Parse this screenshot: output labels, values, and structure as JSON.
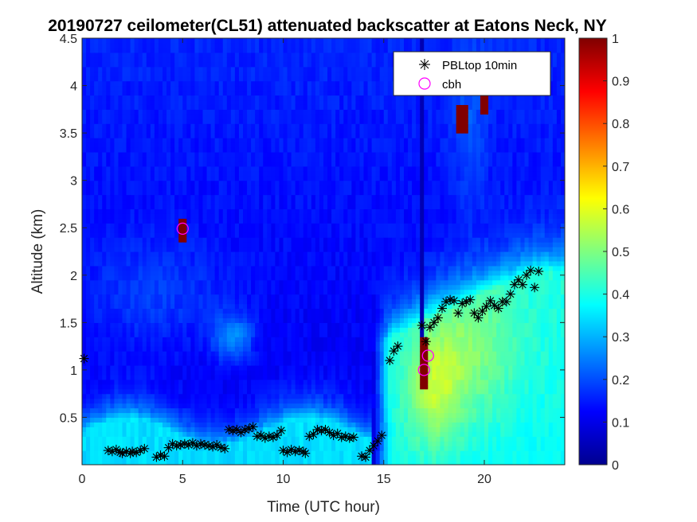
{
  "chart_data": {
    "type": "heatmap",
    "title": "20190727 ceilometer(CL51) attenuated backscatter at Eatons Neck, NY",
    "xlabel": "Time (UTC hour)",
    "ylabel": "Altitude (km)",
    "xlim": [
      0,
      24
    ],
    "ylim": [
      0,
      4.5
    ],
    "xticks": [
      0,
      5,
      10,
      15,
      20
    ],
    "xtick_labels": [
      "0",
      "5",
      "10",
      "15",
      "20"
    ],
    "yticks": [
      0.5,
      1,
      1.5,
      2,
      2.5,
      3,
      3.5,
      4,
      4.5
    ],
    "ytick_labels": [
      "0.5",
      "1",
      "1.5",
      "2",
      "2.5",
      "3",
      "3.5",
      "4",
      "4.5"
    ],
    "colorbar": {
      "limits": [
        0,
        1
      ],
      "ticks": [
        0,
        0.1,
        0.2,
        0.3,
        0.4,
        0.5,
        0.6,
        0.7,
        0.8,
        0.9,
        1
      ],
      "tick_labels": [
        "0",
        "0.1",
        "0.2",
        "0.3",
        "0.4",
        "0.5",
        "0.6",
        "0.7",
        "0.8",
        "0.9",
        "1"
      ],
      "colormap": "jet"
    },
    "legend": {
      "location": "top-right",
      "entries": [
        {
          "label": "PBLtop 10min",
          "marker": "asterisk",
          "color": "#000000"
        },
        {
          "label": "cbh",
          "marker": "circle",
          "color": "#ff00ff"
        }
      ]
    },
    "series": [
      {
        "name": "PBLtop 10min",
        "x": [
          0.1,
          1.3,
          1.5,
          1.7,
          1.9,
          2.0,
          2.2,
          2.4,
          2.5,
          2.7,
          2.9,
          3.1,
          3.7,
          3.9,
          4.1,
          4.3,
          4.5,
          4.7,
          4.9,
          5.1,
          5.3,
          5.5,
          5.7,
          5.9,
          6.1,
          6.3,
          6.5,
          6.7,
          6.9,
          7.1,
          7.3,
          7.5,
          7.7,
          7.9,
          8.1,
          8.3,
          8.5,
          8.7,
          8.9,
          9.1,
          9.3,
          9.5,
          9.7,
          9.9,
          10.0,
          10.2,
          10.4,
          10.6,
          10.8,
          11.0,
          11.1,
          11.3,
          11.5,
          11.7,
          11.9,
          12.1,
          12.3,
          12.5,
          12.7,
          12.9,
          13.1,
          13.3,
          13.5,
          13.9,
          14.1,
          14.3,
          14.5,
          14.7,
          14.9,
          15.3,
          15.5,
          15.7,
          16.9,
          17.1,
          17.3,
          17.5,
          17.7,
          17.9,
          18.1,
          18.3,
          18.5,
          18.7,
          18.9,
          19.1,
          19.3,
          19.5,
          19.7,
          19.9,
          20.1,
          20.3,
          20.5,
          20.7,
          20.9,
          21.1,
          21.3,
          21.5,
          21.7,
          21.9,
          22.1,
          22.3,
          22.5,
          22.7
        ],
        "y": [
          1.12,
          0.15,
          0.14,
          0.16,
          0.13,
          0.12,
          0.14,
          0.12,
          0.14,
          0.13,
          0.15,
          0.17,
          0.08,
          0.1,
          0.09,
          0.18,
          0.22,
          0.2,
          0.21,
          0.22,
          0.21,
          0.23,
          0.2,
          0.22,
          0.21,
          0.2,
          0.19,
          0.21,
          0.18,
          0.17,
          0.37,
          0.36,
          0.37,
          0.34,
          0.37,
          0.38,
          0.4,
          0.3,
          0.31,
          0.28,
          0.3,
          0.29,
          0.31,
          0.36,
          0.15,
          0.13,
          0.16,
          0.14,
          0.15,
          0.14,
          0.12,
          0.3,
          0.32,
          0.37,
          0.36,
          0.37,
          0.34,
          0.31,
          0.33,
          0.29,
          0.3,
          0.28,
          0.29,
          0.09,
          0.08,
          0.15,
          0.2,
          0.25,
          0.31,
          1.1,
          1.2,
          1.25,
          1.47,
          1.3,
          1.45,
          1.5,
          1.55,
          1.65,
          1.72,
          1.74,
          1.73,
          1.6,
          1.7,
          1.72,
          1.74,
          1.6,
          1.55,
          1.62,
          1.67,
          1.73,
          1.68,
          1.65,
          1.72,
          1.72,
          1.8,
          1.9,
          1.95,
          1.9,
          2.0,
          2.05,
          1.87,
          2.04
        ],
        "marker": "asterisk",
        "color": "#000000"
      },
      {
        "name": "cbh",
        "x": [
          5.0,
          17.0,
          17.2
        ],
        "y": [
          2.49,
          1.0,
          1.15
        ],
        "marker": "circle",
        "color": "#ff00ff"
      }
    ],
    "features": [
      {
        "name": "aerosol-layer",
        "description": "mixed boundary layer",
        "x_range": [
          0,
          15
        ],
        "alt_range": [
          0,
          0.6
        ],
        "value": 0.35
      },
      {
        "name": "cloud",
        "x": 5.0,
        "alt_range": [
          2.35,
          2.62
        ],
        "value": 1.0
      },
      {
        "name": "cloud",
        "x": 17.0,
        "alt_range": [
          0.8,
          1.35
        ],
        "value": 1.0
      },
      {
        "name": "cloud",
        "x": 18.9,
        "alt_range": [
          3.5,
          3.8
        ],
        "value": 1.0
      },
      {
        "name": "cloud",
        "x": 20.0,
        "alt_range": [
          3.7,
          3.95
        ],
        "value": 1.0
      }
    ]
  }
}
